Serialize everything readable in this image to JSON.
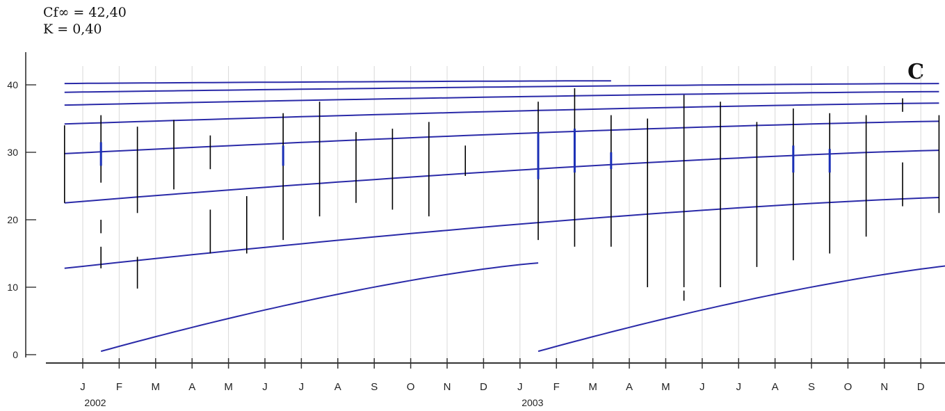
{
  "params": {
    "cf": "Cf∞ = 42,40",
    "k": "K = 0,40"
  },
  "panel_label": "C",
  "chart_data": {
    "type": "line",
    "title": "",
    "xlabel": "",
    "ylabel": "",
    "ylim": [
      -1,
      44
    ],
    "yticks": [
      0,
      10,
      20,
      30,
      40
    ],
    "grid": "vertical gridlines at month ticks",
    "months": [
      "J",
      "F",
      "M",
      "A",
      "M",
      "J",
      "J",
      "A",
      "S",
      "O",
      "N",
      "D",
      "J",
      "F",
      "M",
      "A",
      "M",
      "J",
      "J",
      "A",
      "S",
      "O",
      "N",
      "D"
    ],
    "year_labels": [
      {
        "label": "2002",
        "month_index": 0
      },
      {
        "label": "2003",
        "month_index": 12
      }
    ],
    "line_color": "#2a2aa8",
    "bar_color": "#000000",
    "growth_curves": [
      {
        "x": [
          0.5,
          12.5
        ],
        "y": [
          0.5,
          13.6
        ]
      },
      {
        "x": [
          12.5,
          24.5
        ],
        "y": [
          0.5,
          13.6
        ]
      },
      {
        "x": [
          -0.5,
          23.5
        ],
        "y": [
          12.8,
          23.3
        ]
      },
      {
        "x": [
          -0.5,
          23.5
        ],
        "y": [
          22.5,
          30.3
        ]
      },
      {
        "x": [
          -0.5,
          23.5
        ],
        "y": [
          29.8,
          34.6
        ]
      },
      {
        "x": [
          -0.5,
          23.5
        ],
        "y": [
          34.2,
          37.3
        ]
      },
      {
        "x": [
          -0.5,
          23.5
        ],
        "y": [
          37.0,
          39.0
        ]
      },
      {
        "x": [
          -0.5,
          23.5
        ],
        "y": [
          38.9,
          40.2
        ]
      },
      {
        "x": [
          -0.5,
          14.5
        ],
        "y": [
          40.2,
          40.6
        ]
      }
    ],
    "observation_ranges": [
      {
        "x": -0.5,
        "segments": [
          [
            22.5,
            34.0
          ]
        ]
      },
      {
        "x": 0.5,
        "segments": [
          [
            12.8,
            16.0
          ],
          [
            18.0,
            20.0
          ],
          [
            25.5,
            35.5
          ]
        ]
      },
      {
        "x": 1.5,
        "segments": [
          [
            9.8,
            14.5
          ],
          [
            21.0,
            33.8
          ]
        ]
      },
      {
        "x": 2.5,
        "segments": [
          [
            24.5,
            34.8
          ]
        ]
      },
      {
        "x": 3.5,
        "segments": [
          [
            15.0,
            21.5
          ],
          [
            27.5,
            32.5
          ]
        ]
      },
      {
        "x": 4.5,
        "segments": [
          [
            15.0,
            23.5
          ]
        ]
      },
      {
        "x": 5.5,
        "segments": [
          [
            17.0,
            35.8
          ]
        ]
      },
      {
        "x": 6.5,
        "segments": [
          [
            20.5,
            37.5
          ]
        ]
      },
      {
        "x": 7.5,
        "segments": [
          [
            22.5,
            33.0
          ]
        ]
      },
      {
        "x": 8.5,
        "segments": [
          [
            21.5,
            33.5
          ]
        ]
      },
      {
        "x": 9.5,
        "segments": [
          [
            20.5,
            34.5
          ]
        ]
      },
      {
        "x": 10.5,
        "segments": [
          [
            26.5,
            31.0
          ]
        ]
      },
      {
        "x": 12.5,
        "segments": [
          [
            17.0,
            37.5
          ]
        ]
      },
      {
        "x": 13.5,
        "segments": [
          [
            16.0,
            39.5
          ]
        ]
      },
      {
        "x": 14.5,
        "segments": [
          [
            16.0,
            35.5
          ]
        ]
      },
      {
        "x": 15.5,
        "segments": [
          [
            10.0,
            35.0
          ]
        ]
      },
      {
        "x": 16.5,
        "segments": [
          [
            8.0,
            9.5
          ],
          [
            10.0,
            38.5
          ]
        ]
      },
      {
        "x": 17.5,
        "segments": [
          [
            10.0,
            37.5
          ]
        ]
      },
      {
        "x": 18.5,
        "segments": [
          [
            13.0,
            34.5
          ]
        ]
      },
      {
        "x": 19.5,
        "segments": [
          [
            14.0,
            36.5
          ]
        ]
      },
      {
        "x": 20.5,
        "segments": [
          [
            15.0,
            35.8
          ]
        ]
      },
      {
        "x": 21.5,
        "segments": [
          [
            17.5,
            35.5
          ]
        ]
      },
      {
        "x": 22.5,
        "segments": [
          [
            22.0,
            28.5
          ],
          [
            36.0,
            38.0
          ]
        ]
      },
      {
        "x": 23.5,
        "segments": [
          [
            21.0,
            35.5
          ]
        ]
      }
    ],
    "blue_marks": [
      {
        "x": 0.5,
        "y": [
          28.0,
          31.5
        ]
      },
      {
        "x": 5.5,
        "y": [
          28.0,
          31.0
        ]
      },
      {
        "x": 12.5,
        "y": [
          26.0,
          33.0
        ]
      },
      {
        "x": 13.5,
        "y": [
          27.0,
          33.5
        ]
      },
      {
        "x": 14.5,
        "y": [
          27.5,
          30.0
        ]
      },
      {
        "x": 19.5,
        "y": [
          27.0,
          31.0
        ]
      },
      {
        "x": 20.5,
        "y": [
          27.0,
          30.5
        ]
      }
    ]
  }
}
